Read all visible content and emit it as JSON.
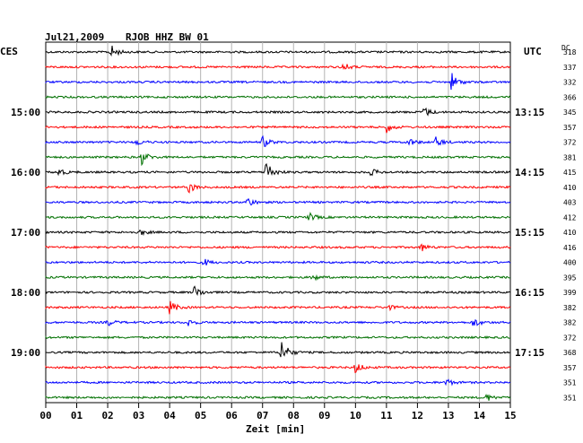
{
  "header": {
    "date": "Jul21,2009",
    "station": "RJOB HHZ BW 01",
    "left_tz": "CES",
    "right_tz": "UTC",
    "dc_header": "DC"
  },
  "chart_data": {
    "type": "line",
    "title": "RJOB HHZ BW 01",
    "xlabel": "Zeit [min]",
    "xlim": [
      0,
      15
    ],
    "x_ticks": [
      "00",
      "01",
      "02",
      "03",
      "04",
      "05",
      "06",
      "07",
      "08",
      "09",
      "10",
      "11",
      "12",
      "13",
      "14",
      "15"
    ],
    "trace_colors": [
      "#000000",
      "#ff0000",
      "#0000ff",
      "#007000"
    ],
    "left_hour_labels": [
      {
        "trace": 4,
        "label": "15:00"
      },
      {
        "trace": 8,
        "label": "16:00"
      },
      {
        "trace": 12,
        "label": "17:00"
      },
      {
        "trace": 16,
        "label": "18:00"
      },
      {
        "trace": 20,
        "label": "19:00"
      }
    ],
    "right_hour_labels": [
      {
        "trace": 4,
        "label": "13:15"
      },
      {
        "trace": 8,
        "label": "14:15"
      },
      {
        "trace": 12,
        "label": "15:15"
      },
      {
        "trace": 16,
        "label": "16:15"
      },
      {
        "trace": 20,
        "label": "17:15"
      }
    ],
    "dc_offsets": [
      "318",
      "337",
      "332",
      "366",
      "345",
      "357",
      "372",
      "381",
      "415",
      "410",
      "403",
      "412",
      "410",
      "416",
      "400",
      "395",
      "399",
      "382",
      "382",
      "372",
      "368",
      "357",
      "351",
      "351"
    ],
    "events": [
      {
        "trace": 0,
        "t": 2.1,
        "amp": 8
      },
      {
        "trace": 1,
        "t": 9.6,
        "amp": 5
      },
      {
        "trace": 2,
        "t": 13.1,
        "amp": 10
      },
      {
        "trace": 4,
        "t": 12.2,
        "amp": 6
      },
      {
        "trace": 5,
        "t": 11.0,
        "amp": 6
      },
      {
        "trace": 6,
        "t": 2.9,
        "amp": 4
      },
      {
        "trace": 6,
        "t": 7.0,
        "amp": 7
      },
      {
        "trace": 6,
        "t": 11.7,
        "amp": 5
      },
      {
        "trace": 6,
        "t": 12.6,
        "amp": 6
      },
      {
        "trace": 7,
        "t": 3.1,
        "amp": 8
      },
      {
        "trace": 8,
        "t": 0.4,
        "amp": 5
      },
      {
        "trace": 8,
        "t": 7.1,
        "amp": 15
      },
      {
        "trace": 8,
        "t": 10.5,
        "amp": 4
      },
      {
        "trace": 9,
        "t": 4.6,
        "amp": 7
      },
      {
        "trace": 10,
        "t": 6.5,
        "amp": 6
      },
      {
        "trace": 11,
        "t": 8.5,
        "amp": 5
      },
      {
        "trace": 12,
        "t": 3.0,
        "amp": 4
      },
      {
        "trace": 13,
        "t": 12.1,
        "amp": 5
      },
      {
        "trace": 14,
        "t": 5.1,
        "amp": 4
      },
      {
        "trace": 15,
        "t": 8.6,
        "amp": 4
      },
      {
        "trace": 16,
        "t": 4.8,
        "amp": 8
      },
      {
        "trace": 17,
        "t": 4.0,
        "amp": 8
      },
      {
        "trace": 17,
        "t": 11.0,
        "amp": 4
      },
      {
        "trace": 18,
        "t": 2.0,
        "amp": 4
      },
      {
        "trace": 18,
        "t": 4.6,
        "amp": 4
      },
      {
        "trace": 18,
        "t": 13.8,
        "amp": 6
      },
      {
        "trace": 20,
        "t": 7.6,
        "amp": 16
      },
      {
        "trace": 21,
        "t": 10.0,
        "amp": 7
      },
      {
        "trace": 22,
        "t": 12.9,
        "amp": 5
      },
      {
        "trace": 23,
        "t": 14.2,
        "amp": 5
      }
    ]
  }
}
